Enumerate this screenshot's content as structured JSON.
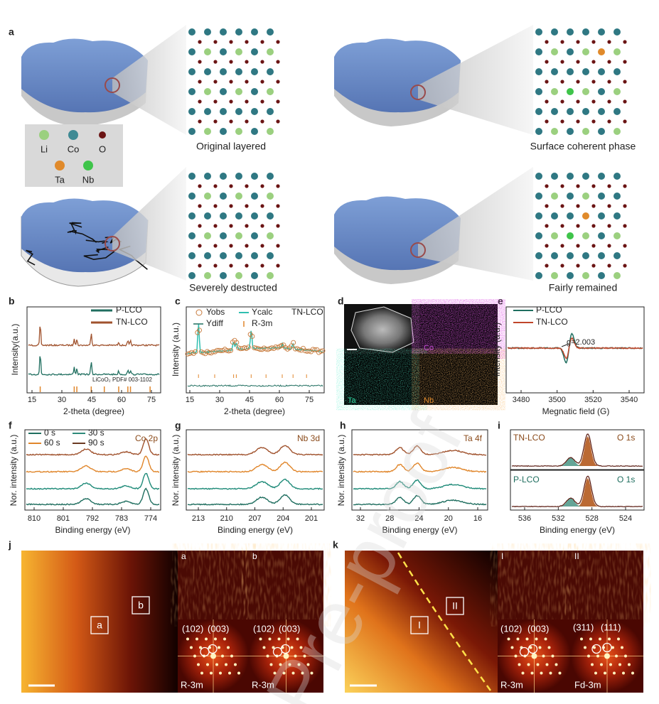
{
  "panel_labels": [
    "a",
    "b",
    "c",
    "d",
    "e",
    "f",
    "g",
    "h",
    "i",
    "j",
    "k"
  ],
  "panel_a": {
    "legend": [
      "Li",
      "Co",
      "O",
      "Ta",
      "Nb"
    ],
    "captions": [
      "Original layered",
      "Surface coherent phase",
      "Severely destructed",
      "Fairly remained"
    ]
  },
  "panel_b": {
    "legend": [
      "P-LCO",
      "TN-LCO"
    ],
    "y_label": "Intensity(a.u.)",
    "x_label": "2-theta (degree)",
    "x_ticks": [
      "15",
      "30",
      "45",
      "60",
      "75"
    ],
    "reference": "LiCoO₂ PDF# 003-1102"
  },
  "panel_c": {
    "legend": [
      "Yobs",
      "Ycalc",
      "Ydiff",
      "R-3m"
    ],
    "sample": "TN-LCO",
    "y_label": "Intensity (a.u.)",
    "x_label": "2-theta (degree)",
    "x_ticks": [
      "15",
      "30",
      "45",
      "60",
      "75"
    ]
  },
  "panel_d": {
    "maps": [
      "Co",
      "Ta",
      "Nb"
    ]
  },
  "panel_e": {
    "legend": [
      "P-LCO",
      "TN-LCO"
    ],
    "annotation": "g=2.003",
    "y_label": "Intensity (a.u.)",
    "x_label": "Megnatic field (G)",
    "x_ticks": [
      "3480",
      "3500",
      "3520",
      "3540"
    ]
  },
  "panel_f": {
    "legend": [
      "0 s",
      "30 s",
      "60 s",
      "90 s"
    ],
    "element": "Co 2p",
    "y_label": "Nor. intensity (a.u.)",
    "x_label": "Binding energy (eV)",
    "x_ticks": [
      "810",
      "801",
      "792",
      "783",
      "774"
    ]
  },
  "panel_g": {
    "element": "Nb 3d",
    "y_label": "Nor. intensity (a.u.)",
    "x_label": "Binding energy (eV)",
    "x_ticks": [
      "213",
      "210",
      "207",
      "204",
      "201"
    ]
  },
  "panel_h": {
    "element": "Ta 4f",
    "y_label": "Nor. intensity (a.u.)",
    "x_label": "Binding energy (eV)",
    "x_ticks": [
      "32",
      "28",
      "24",
      "20",
      "16"
    ]
  },
  "panel_i": {
    "top": {
      "sample": "TN-LCO",
      "element": "O 1s"
    },
    "bottom": {
      "sample": "P-LCO",
      "element": "O 1s"
    },
    "x_label": "Binding energy (eV)",
    "x_ticks": [
      "536",
      "532",
      "528",
      "524"
    ]
  },
  "panel_j": {
    "regions": [
      "a",
      "b"
    ],
    "insets": [
      "a",
      "b"
    ],
    "spots": [
      "(102)",
      "(003)",
      "(102)",
      "(003)"
    ],
    "phases": [
      "R-3m",
      "R-3m"
    ]
  },
  "panel_k": {
    "regions": [
      "I",
      "II"
    ],
    "insets": [
      "I",
      "II"
    ],
    "spots": [
      "(102)",
      "(003)",
      "(311)",
      "(111)"
    ],
    "phases": [
      "R-3m",
      "Fd-3m"
    ]
  },
  "watermark": "Pre-proof"
}
